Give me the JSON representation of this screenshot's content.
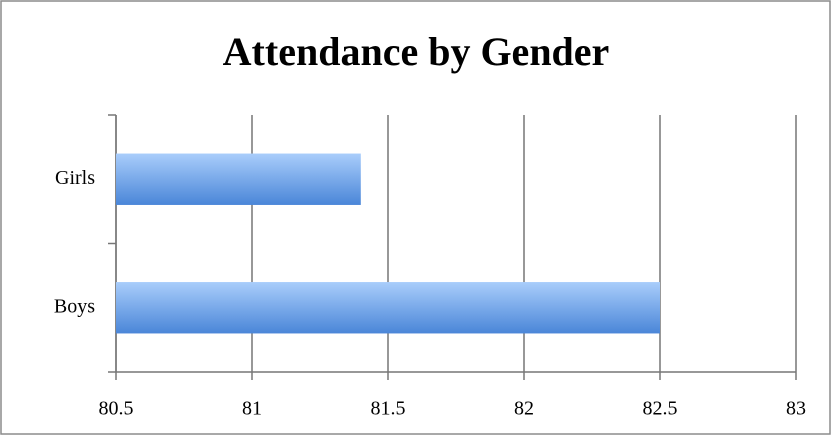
{
  "chart_data": {
    "type": "bar",
    "orientation": "horizontal",
    "title": "Attendance by Gender",
    "categories": [
      "Girls",
      "Boys"
    ],
    "values": [
      81.4,
      82.5
    ],
    "color": "#4a86d8",
    "xlim": [
      80.5,
      83
    ],
    "xticks": [
      80.5,
      81,
      81.5,
      82,
      82.5,
      83
    ],
    "grid": true
  }
}
